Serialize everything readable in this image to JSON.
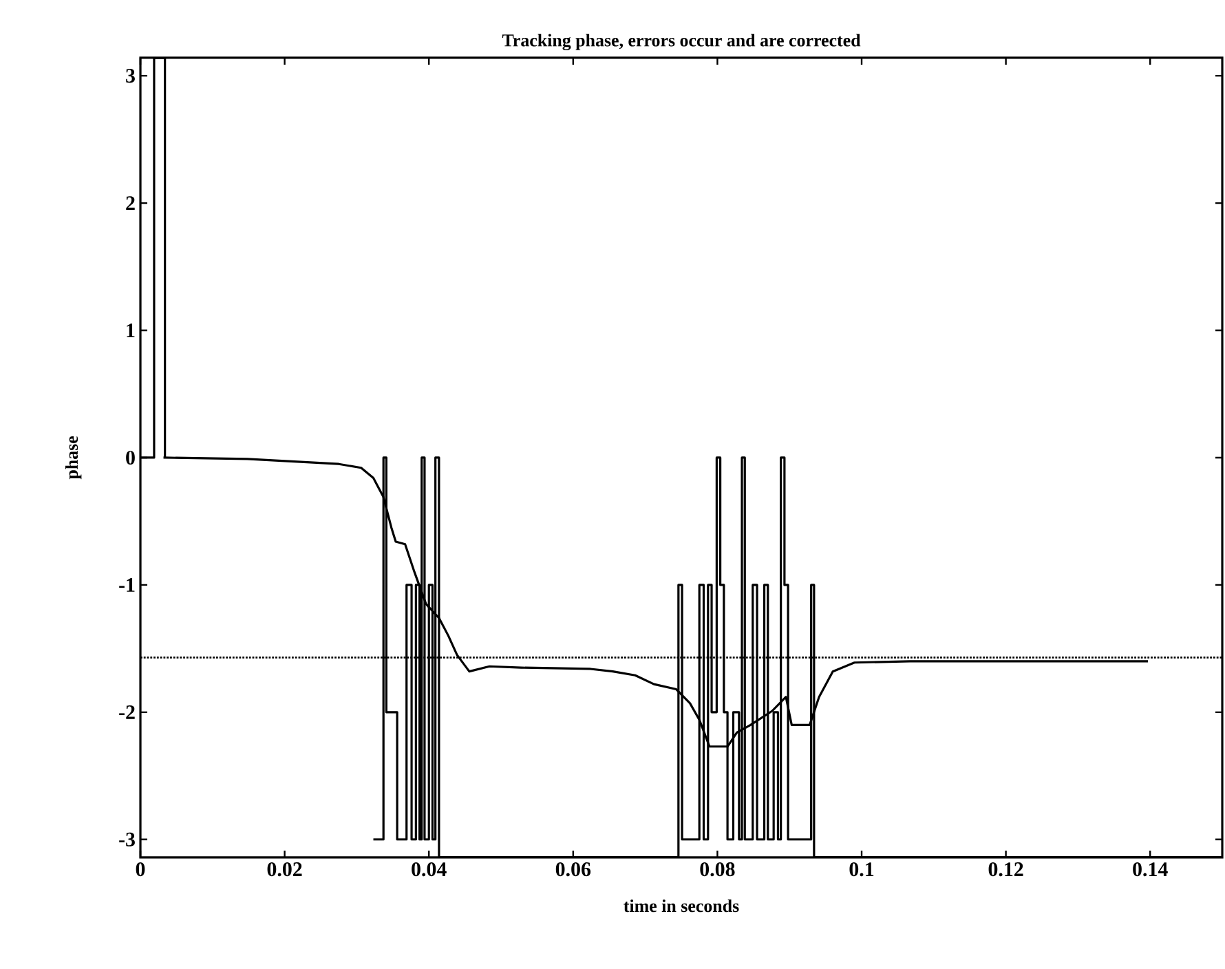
{
  "chart_data": {
    "type": "line",
    "title": "Tracking phase, errors occur and are corrected",
    "xlabel": "time in seconds",
    "ylabel": "phase",
    "xlim": [
      0,
      0.15
    ],
    "ylim": [
      -3.1416,
      3.1416
    ],
    "xticks": [
      0,
      0.02,
      0.04,
      0.06,
      0.08,
      0.1,
      0.12,
      0.14
    ],
    "yticks": [
      -3,
      -2,
      -1,
      0,
      1,
      2,
      3
    ],
    "grid": false,
    "ref_lines": [
      {
        "axis": "y",
        "value": -1.57,
        "color": "#000000",
        "line_style": "dotted"
      }
    ],
    "series": [
      {
        "color": "#000000",
        "x": [
          0.0032,
          0.0148,
          0.0275,
          0.0306,
          0.0323,
          0.0337,
          0.0348,
          0.0354,
          0.0367,
          0.038,
          0.0396,
          0.0414,
          0.0427,
          0.0439,
          0.0456,
          0.0484,
          0.0528,
          0.0624,
          0.0655,
          0.0686,
          0.0712,
          0.0743,
          0.0762,
          0.0775,
          0.0789,
          0.0814,
          0.0827,
          0.0846,
          0.0876,
          0.0895,
          0.0903,
          0.0928,
          0.0941,
          0.096,
          0.099,
          0.1067,
          0.1397
        ],
        "values": [
          0,
          -0.01,
          -0.05,
          -0.08,
          -0.16,
          -0.31,
          -0.55,
          -0.66,
          -0.68,
          -0.9,
          -1.15,
          -1.26,
          -1.4,
          -1.55,
          -1.68,
          -1.64,
          -1.65,
          -1.66,
          -1.68,
          -1.71,
          -1.78,
          -1.82,
          -1.93,
          -2.06,
          -2.27,
          -2.27,
          -2.16,
          -2.1,
          -1.99,
          -1.88,
          -2.1,
          -2.1,
          -1.88,
          -1.68,
          -1.61,
          -1.6,
          -1.6
        ]
      },
      {
        "type": "step",
        "color": "#000000",
        "x": [
          0,
          0.0019,
          0.0034,
          0.02,
          0.0323,
          0.0337,
          0.0341,
          0.0356,
          0.0369,
          0.0376,
          0.0382,
          0.0387,
          0.039,
          0.0394,
          0.04,
          0.0405,
          0.0409,
          0.0414,
          0.0746,
          0.0751,
          0.0775,
          0.0781,
          0.0787,
          0.0792,
          0.0799,
          0.0804,
          0.0809,
          0.0814,
          0.0822,
          0.083,
          0.0834,
          0.0838,
          0.0849,
          0.0855,
          0.0865,
          0.087,
          0.0878,
          0.0884,
          0.0888,
          0.0893,
          0.0898,
          0.093,
          0.0934,
          0.15
        ],
        "values": [
          0,
          3.14,
          0,
          null,
          -3.0,
          0,
          -2,
          -3,
          -1,
          -3,
          -1,
          -3,
          0,
          -3,
          -1,
          -3,
          0,
          -3.14,
          -1,
          -3,
          -1,
          -3,
          -1,
          -2,
          0,
          -1,
          -2,
          -3,
          -2,
          -3,
          0,
          -3,
          -1,
          -3,
          -1,
          -3,
          -2,
          -3,
          0,
          -1,
          -3,
          -1,
          -3.14,
          -3.14
        ]
      }
    ]
  }
}
